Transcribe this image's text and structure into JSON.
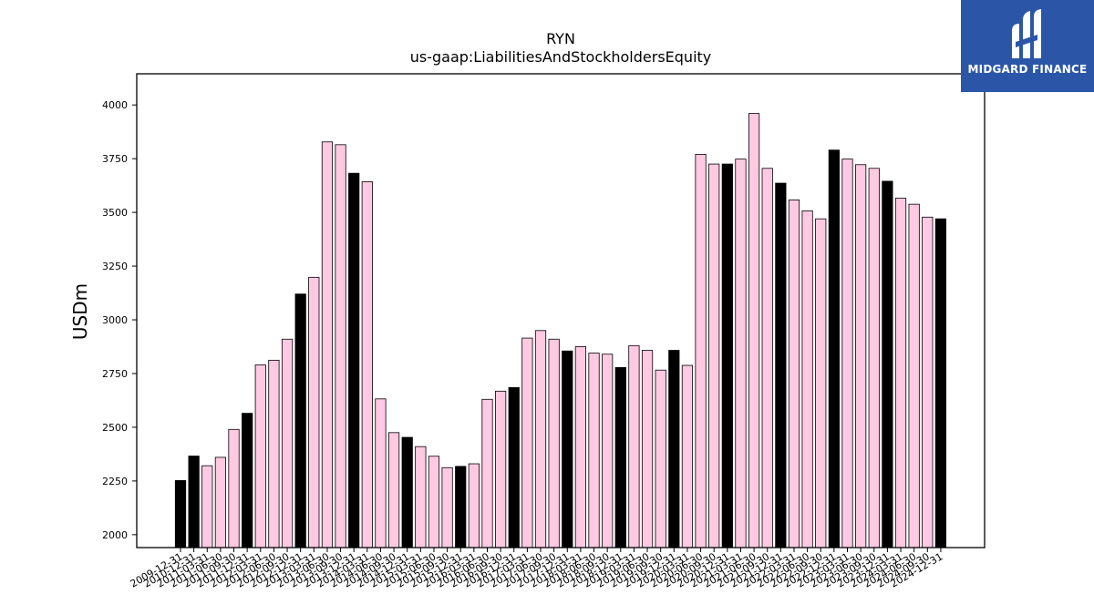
{
  "chart_data": {
    "type": "bar",
    "title": "RYN",
    "subtitle": "us-gaap:LiabilitiesAndStockholdersEquity",
    "xlabel": "",
    "ylabel": "USDm",
    "ylim": [
      1940,
      4145
    ],
    "yticks": [
      2000,
      2250,
      2500,
      2750,
      3000,
      3250,
      3500,
      3750,
      4000
    ],
    "colors": {
      "annual": "#000000",
      "quarterly": "#ffc9e2",
      "edge": "#000000"
    },
    "categories": [
      "2009-12-31",
      "2010-12-31",
      "2011-03-31",
      "2011-06-30",
      "2011-09-30",
      "2011-12-31",
      "2012-03-31",
      "2012-06-30",
      "2012-09-30",
      "2012-12-31",
      "2013-03-31",
      "2013-06-30",
      "2013-09-30",
      "2013-12-31",
      "2014-03-31",
      "2014-06-30",
      "2014-09-30",
      "2014-12-31",
      "2015-03-31",
      "2015-06-30",
      "2015-09-30",
      "2015-12-31",
      "2016-03-31",
      "2016-06-30",
      "2016-09-30",
      "2016-12-31",
      "2017-03-31",
      "2017-06-30",
      "2017-09-30",
      "2017-12-31",
      "2018-03-31",
      "2018-06-30",
      "2018-09-30",
      "2018-12-31",
      "2019-03-31",
      "2019-06-30",
      "2019-09-30",
      "2019-12-31",
      "2020-03-31",
      "2020-06-30",
      "2020-09-30",
      "2020-12-31",
      "2021-03-31",
      "2021-06-30",
      "2021-09-30",
      "2021-12-31",
      "2022-03-31",
      "2022-06-30",
      "2022-09-30",
      "2022-12-31",
      "2023-03-31",
      "2023-06-30",
      "2023-09-30",
      "2023-12-31",
      "2024-03-31",
      "2024-06-30",
      "2024-09-30",
      "2024-12-31"
    ],
    "values": [
      2252,
      2366,
      2321,
      2360,
      2490,
      2565,
      2790,
      2812,
      2910,
      3120,
      3198,
      3828,
      3815,
      3682,
      3643,
      2632,
      2475,
      2453,
      2410,
      2365,
      2312,
      2318,
      2330,
      2630,
      2668,
      2685,
      2915,
      2950,
      2910,
      2855,
      2875,
      2845,
      2840,
      2778,
      2880,
      2858,
      2766,
      2858,
      2788,
      3770,
      3725,
      3725,
      3748,
      3960,
      3705,
      3636,
      3558,
      3507,
      3470,
      3790,
      3748,
      3722,
      3705,
      3645,
      3566,
      3538,
      3478,
      3470
    ],
    "annual": [
      true,
      true,
      false,
      false,
      false,
      true,
      false,
      false,
      false,
      true,
      false,
      false,
      false,
      true,
      false,
      false,
      false,
      true,
      false,
      false,
      false,
      true,
      false,
      false,
      false,
      true,
      false,
      false,
      false,
      true,
      false,
      false,
      false,
      true,
      false,
      false,
      false,
      true,
      false,
      false,
      false,
      true,
      false,
      false,
      false,
      true,
      false,
      false,
      false,
      true,
      false,
      false,
      false,
      true,
      false,
      false,
      false,
      true
    ]
  },
  "logo": {
    "text": "MIDGARD FINANCE",
    "icon": "midgard-logo-icon"
  }
}
